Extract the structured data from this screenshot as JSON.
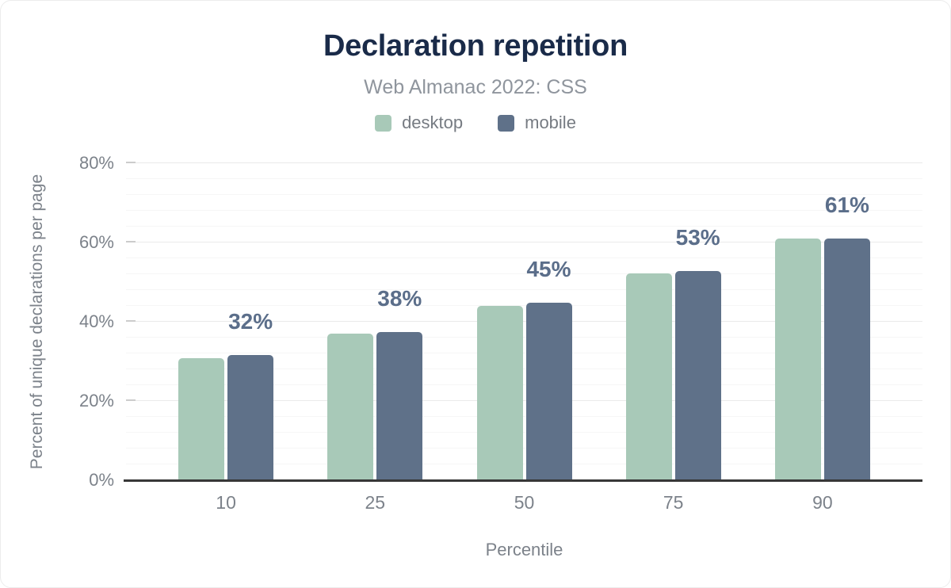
{
  "chart_data": {
    "type": "bar",
    "title": "Declaration repetition",
    "subtitle": "Web Almanac 2022: CSS",
    "xlabel": "Percentile",
    "ylabel": "Percent of unique declarations per page",
    "categories": [
      "10",
      "25",
      "50",
      "75",
      "90"
    ],
    "series": [
      {
        "name": "desktop",
        "color": "#a8c9b8",
        "values": [
          30.8,
          37.1,
          44.1,
          52.2,
          61.0
        ]
      },
      {
        "name": "mobile",
        "color": "#5f7189",
        "values": [
          31.6,
          37.5,
          44.8,
          52.8,
          61.1
        ]
      }
    ],
    "bar_value_labels": {
      "series": "mobile",
      "labels": [
        "32%",
        "38%",
        "45%",
        "53%",
        "61%"
      ]
    },
    "ylim": [
      0,
      80
    ],
    "y_ticks": [
      {
        "value": 0,
        "label": "0%"
      },
      {
        "value": 20,
        "label": "20%"
      },
      {
        "value": 40,
        "label": "40%"
      },
      {
        "value": 60,
        "label": "60%"
      },
      {
        "value": 80,
        "label": "80%"
      }
    ],
    "minor_grid_step_pct": 4,
    "grid": true,
    "legend_position": "top",
    "colors": {
      "title": "#1a2b49",
      "subtitle": "#8f959d",
      "axis_text": "#7c828a",
      "value_label": "#5b6e8a",
      "axis_line": "#373737",
      "major_gridline": "#eaeaea",
      "minor_gridline": "#f6f6f6"
    }
  }
}
